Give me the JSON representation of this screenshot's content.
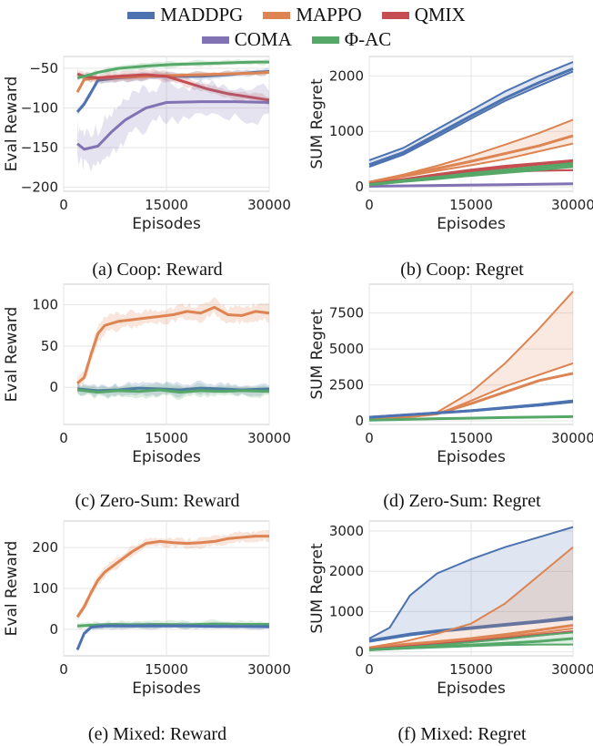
{
  "legend": [
    {
      "name": "MADDPG",
      "color": "#4c72b0"
    },
    {
      "name": "MAPPO",
      "color": "#dd8452"
    },
    {
      "name": "QMIX",
      "color": "#c44e52"
    },
    {
      "name": "COMA",
      "color": "#8172b3"
    },
    {
      "name": "Φ-AC",
      "color": "#55a868"
    }
  ],
  "colors": {
    "MADDPG": "#4c72b0",
    "MAPPO": "#dd8452",
    "QMIX": "#c44e52",
    "COMA": "#8172b3",
    "PhiAC": "#55a868",
    "grid": "#e5e5e5"
  },
  "chart_data": [
    {
      "id": "a",
      "type": "line",
      "caption": "(a) Coop: Reward",
      "xlabel": "Episodes",
      "ylabel": "Eval Reward",
      "xlim": [
        0,
        30000
      ],
      "ylim": [
        -205,
        -35
      ],
      "xticks": [
        0,
        15000,
        30000
      ],
      "xtick_labels": [
        "0",
        "15000",
        "30000"
      ],
      "yticks": [
        -50,
        -100,
        -150,
        -200
      ],
      "ytick_labels": [
        "−50",
        "−100",
        "−150",
        "−200"
      ],
      "grid": true,
      "legend": "top",
      "series": [
        {
          "key": "MADDPG",
          "x": [
            2000,
            3000,
            5000,
            8000,
            12000,
            16000,
            20000,
            24000,
            28000,
            30000
          ],
          "y": [
            -105,
            -95,
            -65,
            -62,
            -60,
            -60,
            -60,
            -58,
            -55,
            -54
          ],
          "band": 4
        },
        {
          "key": "MAPPO",
          "x": [
            2000,
            3000,
            5000,
            8000,
            12000,
            16000,
            20000,
            24000,
            28000,
            30000
          ],
          "y": [
            -80,
            -64,
            -62,
            -61,
            -60,
            -59,
            -58,
            -57,
            -56,
            -55
          ],
          "band": 3
        },
        {
          "key": "QMIX",
          "x": [
            2000,
            3000,
            5000,
            8000,
            12000,
            15000,
            18000,
            21000,
            24000,
            27000,
            30000
          ],
          "y": [
            -57,
            -60,
            -62,
            -60,
            -58,
            -60,
            -68,
            -76,
            -82,
            -86,
            -90
          ],
          "band": 5
        },
        {
          "key": "COMA",
          "x": [
            2000,
            3000,
            5000,
            7000,
            9000,
            12000,
            15000,
            20000,
            25000,
            30000
          ],
          "y": [
            -145,
            -152,
            -148,
            -130,
            -115,
            -100,
            -93,
            -92,
            -92,
            -93
          ],
          "band": 20
        },
        {
          "key": "PhiAC",
          "x": [
            2000,
            3000,
            5000,
            8000,
            12000,
            16000,
            20000,
            24000,
            28000,
            30000
          ],
          "y": [
            -62,
            -60,
            -55,
            -50,
            -47,
            -45,
            -44,
            -43,
            -42,
            -42
          ],
          "band": 3
        }
      ]
    },
    {
      "id": "b",
      "type": "line",
      "caption": "(b) Coop: Regret",
      "xlabel": "Episodes",
      "ylabel": "SUM Regret",
      "xlim": [
        0,
        30000
      ],
      "ylim": [
        -80,
        2350
      ],
      "xticks": [
        0,
        15000,
        30000
      ],
      "xtick_labels": [
        "0",
        "15000",
        "30000"
      ],
      "yticks": [
        0,
        1000,
        2000
      ],
      "ytick_labels": [
        "0",
        "1000",
        "2000"
      ],
      "grid": true,
      "series": [
        {
          "key": "MADDPG",
          "x": [
            0,
            5000,
            10000,
            15000,
            20000,
            25000,
            30000
          ],
          "y": [
            400,
            620,
            950,
            1280,
            1600,
            1880,
            2130
          ],
          "upper": [
            480,
            700,
            1040,
            1380,
            1720,
            2000,
            2250
          ],
          "lower": [
            360,
            580,
            900,
            1230,
            1550,
            1820,
            2080
          ]
        },
        {
          "key": "MAPPO",
          "x": [
            0,
            5000,
            10000,
            15000,
            20000,
            25000,
            30000
          ],
          "y": [
            80,
            200,
            330,
            460,
            600,
            740,
            920
          ],
          "upper": [
            90,
            220,
            380,
            560,
            760,
            970,
            1210
          ],
          "lower": [
            70,
            180,
            290,
            390,
            500,
            640,
            780
          ]
        },
        {
          "key": "QMIX",
          "x": [
            0,
            5000,
            10000,
            15000,
            20000,
            25000,
            30000
          ],
          "y": [
            50,
            120,
            200,
            280,
            350,
            410,
            460
          ],
          "upper": [
            60,
            140,
            230,
            310,
            380,
            430,
            480
          ],
          "lower": [
            40,
            100,
            170,
            230,
            270,
            290,
            300
          ]
        },
        {
          "key": "COMA",
          "x": [
            0,
            10000,
            20000,
            30000
          ],
          "y": [
            10,
            25,
            40,
            55
          ]
        },
        {
          "key": "PhiAC",
          "x": [
            0,
            5000,
            10000,
            15000,
            20000,
            25000,
            30000
          ],
          "y": [
            40,
            100,
            160,
            220,
            280,
            340,
            400
          ],
          "upper": [
            50,
            120,
            180,
            250,
            310,
            370,
            430
          ],
          "lower": [
            30,
            90,
            140,
            200,
            250,
            300,
            360
          ]
        }
      ]
    },
    {
      "id": "c",
      "type": "line",
      "caption": "(c) Zero-Sum: Reward",
      "xlabel": "Episodes",
      "ylabel": "Eval Reward",
      "xlim": [
        0,
        30000
      ],
      "ylim": [
        -45,
        125
      ],
      "xticks": [
        0,
        15000,
        30000
      ],
      "xtick_labels": [
        "0",
        "15000",
        "30000"
      ],
      "yticks": [
        100,
        50,
        0
      ],
      "ytick_labels": [
        "100",
        "50",
        "0"
      ],
      "grid": true,
      "series": [
        {
          "key": "MAPPO",
          "x": [
            2000,
            3000,
            4000,
            5000,
            6000,
            8000,
            10000,
            12000,
            14000,
            16000,
            18000,
            20000,
            22000,
            24000,
            26000,
            28000,
            30000
          ],
          "y": [
            5,
            12,
            40,
            65,
            75,
            80,
            82,
            84,
            86,
            88,
            92,
            90,
            97,
            88,
            87,
            92,
            90
          ],
          "band": 8
        },
        {
          "key": "MADDPG",
          "x": [
            2000,
            5000,
            8000,
            11000,
            14000,
            17000,
            20000,
            23000,
            26000,
            30000
          ],
          "y": [
            -2,
            -4,
            -3,
            -1,
            -2,
            -3,
            -1,
            -2,
            -3,
            -2
          ],
          "band": 6
        },
        {
          "key": "PhiAC",
          "x": [
            2000,
            5000,
            8000,
            11000,
            14000,
            17000,
            20000,
            23000,
            26000,
            30000
          ],
          "y": [
            -3,
            -6,
            -4,
            -5,
            -3,
            -6,
            -4,
            -5,
            -4,
            -5
          ],
          "band": 6
        }
      ]
    },
    {
      "id": "d",
      "type": "line",
      "caption": "(d) Zero-Sum: Regret",
      "xlabel": "Episodes",
      "ylabel": "SUM Regret",
      "xlim": [
        0,
        30000
      ],
      "ylim": [
        -250,
        9500
      ],
      "xticks": [
        0,
        15000,
        30000
      ],
      "xtick_labels": [
        "0",
        "15000",
        "30000"
      ],
      "yticks": [
        0,
        2500,
        5000,
        7500
      ],
      "ytick_labels": [
        "0",
        "2500",
        "5000",
        "7500"
      ],
      "grid": true,
      "series": [
        {
          "key": "MAPPO",
          "x": [
            0,
            5000,
            10000,
            15000,
            20000,
            25000,
            30000
          ],
          "y": [
            100,
            250,
            500,
            1200,
            2000,
            2800,
            3300
          ],
          "upper": [
            120,
            300,
            600,
            2000,
            4000,
            6400,
            9000
          ],
          "lower": [
            80,
            220,
            450,
            1400,
            2400,
            3200,
            4000
          ]
        },
        {
          "key": "MADDPG",
          "x": [
            0,
            5000,
            10000,
            15000,
            20000,
            25000,
            30000
          ],
          "y": [
            250,
            400,
            550,
            700,
            900,
            1100,
            1350
          ],
          "upper": [
            280,
            430,
            580,
            740,
            950,
            1160,
            1420
          ],
          "lower": [
            230,
            380,
            520,
            680,
            870,
            1060,
            1300
          ]
        },
        {
          "key": "PhiAC",
          "x": [
            0,
            10000,
            20000,
            30000
          ],
          "y": [
            50,
            150,
            230,
            300
          ]
        }
      ]
    },
    {
      "id": "e",
      "type": "line",
      "caption": "(e) Mixed: Reward",
      "xlabel": "Episodes",
      "ylabel": "Eval Reward",
      "xlim": [
        0,
        30000
      ],
      "ylim": [
        -65,
        265
      ],
      "xticks": [
        0,
        15000,
        30000
      ],
      "xtick_labels": [
        "0",
        "15000",
        "30000"
      ],
      "yticks": [
        200,
        100,
        0
      ],
      "ytick_labels": [
        "200",
        "100",
        "0"
      ],
      "grid": true,
      "series": [
        {
          "key": "MAPPO",
          "x": [
            2000,
            3000,
            4000,
            5000,
            6000,
            8000,
            10000,
            12000,
            14000,
            16000,
            18000,
            20000,
            22000,
            24000,
            26000,
            28000,
            30000
          ],
          "y": [
            30,
            55,
            90,
            120,
            140,
            165,
            190,
            210,
            215,
            212,
            210,
            212,
            215,
            222,
            225,
            228,
            228
          ],
          "band": 10
        },
        {
          "key": "PhiAC",
          "x": [
            2000,
            4000,
            7000,
            10000,
            14000,
            18000,
            22000,
            26000,
            30000
          ],
          "y": [
            8,
            10,
            12,
            11,
            12,
            11,
            13,
            12,
            12
          ],
          "band": 7
        },
        {
          "key": "MADDPG",
          "x": [
            2000,
            3000,
            4000,
            6000,
            9000,
            13000,
            18000,
            22000,
            26000,
            30000
          ],
          "y": [
            -50,
            -10,
            5,
            8,
            8,
            8,
            8,
            7,
            7,
            6
          ],
          "band": 6
        }
      ]
    },
    {
      "id": "f",
      "type": "line",
      "caption": "(f) Mixed: Regret",
      "xlabel": "Episodes",
      "ylabel": "SUM Regret",
      "xlim": [
        0,
        30000
      ],
      "ylim": [
        -100,
        3250
      ],
      "xticks": [
        0,
        15000,
        30000
      ],
      "xtick_labels": [
        "0",
        "15000",
        "30000"
      ],
      "yticks": [
        0,
        1000,
        2000,
        3000
      ],
      "ytick_labels": [
        "0",
        "1000",
        "2000",
        "3000"
      ],
      "grid": true,
      "series": [
        {
          "key": "MADDPG",
          "x": [
            0,
            3000,
            6000,
            10000,
            15000,
            20000,
            25000,
            30000
          ],
          "y": [
            280,
            360,
            440,
            520,
            600,
            680,
            760,
            860
          ],
          "upper": [
            330,
            600,
            1400,
            1950,
            2300,
            2600,
            2850,
            3100
          ],
          "lower": [
            250,
            330,
            410,
            490,
            570,
            650,
            730,
            810
          ]
        },
        {
          "key": "MAPPO",
          "x": [
            0,
            5000,
            10000,
            15000,
            20000,
            25000,
            30000
          ],
          "y": [
            100,
            180,
            250,
            330,
            430,
            540,
            660
          ],
          "upper": [
            110,
            250,
            450,
            700,
            1200,
            1900,
            2600
          ],
          "lower": [
            90,
            170,
            230,
            300,
            380,
            470,
            580
          ]
        },
        {
          "key": "QMIX",
          "x": [
            0,
            10000,
            20000,
            30000
          ],
          "y": [
            60,
            180,
            330,
            500
          ]
        },
        {
          "key": "PhiAC",
          "x": [
            0,
            5000,
            10000,
            15000,
            20000,
            25000,
            30000
          ],
          "y": [
            50,
            90,
            130,
            170,
            210,
            260,
            330
          ],
          "upper": [
            60,
            110,
            170,
            240,
            320,
            410,
            480
          ],
          "lower": [
            40,
            80,
            110,
            140,
            170,
            180,
            180
          ]
        }
      ]
    }
  ]
}
